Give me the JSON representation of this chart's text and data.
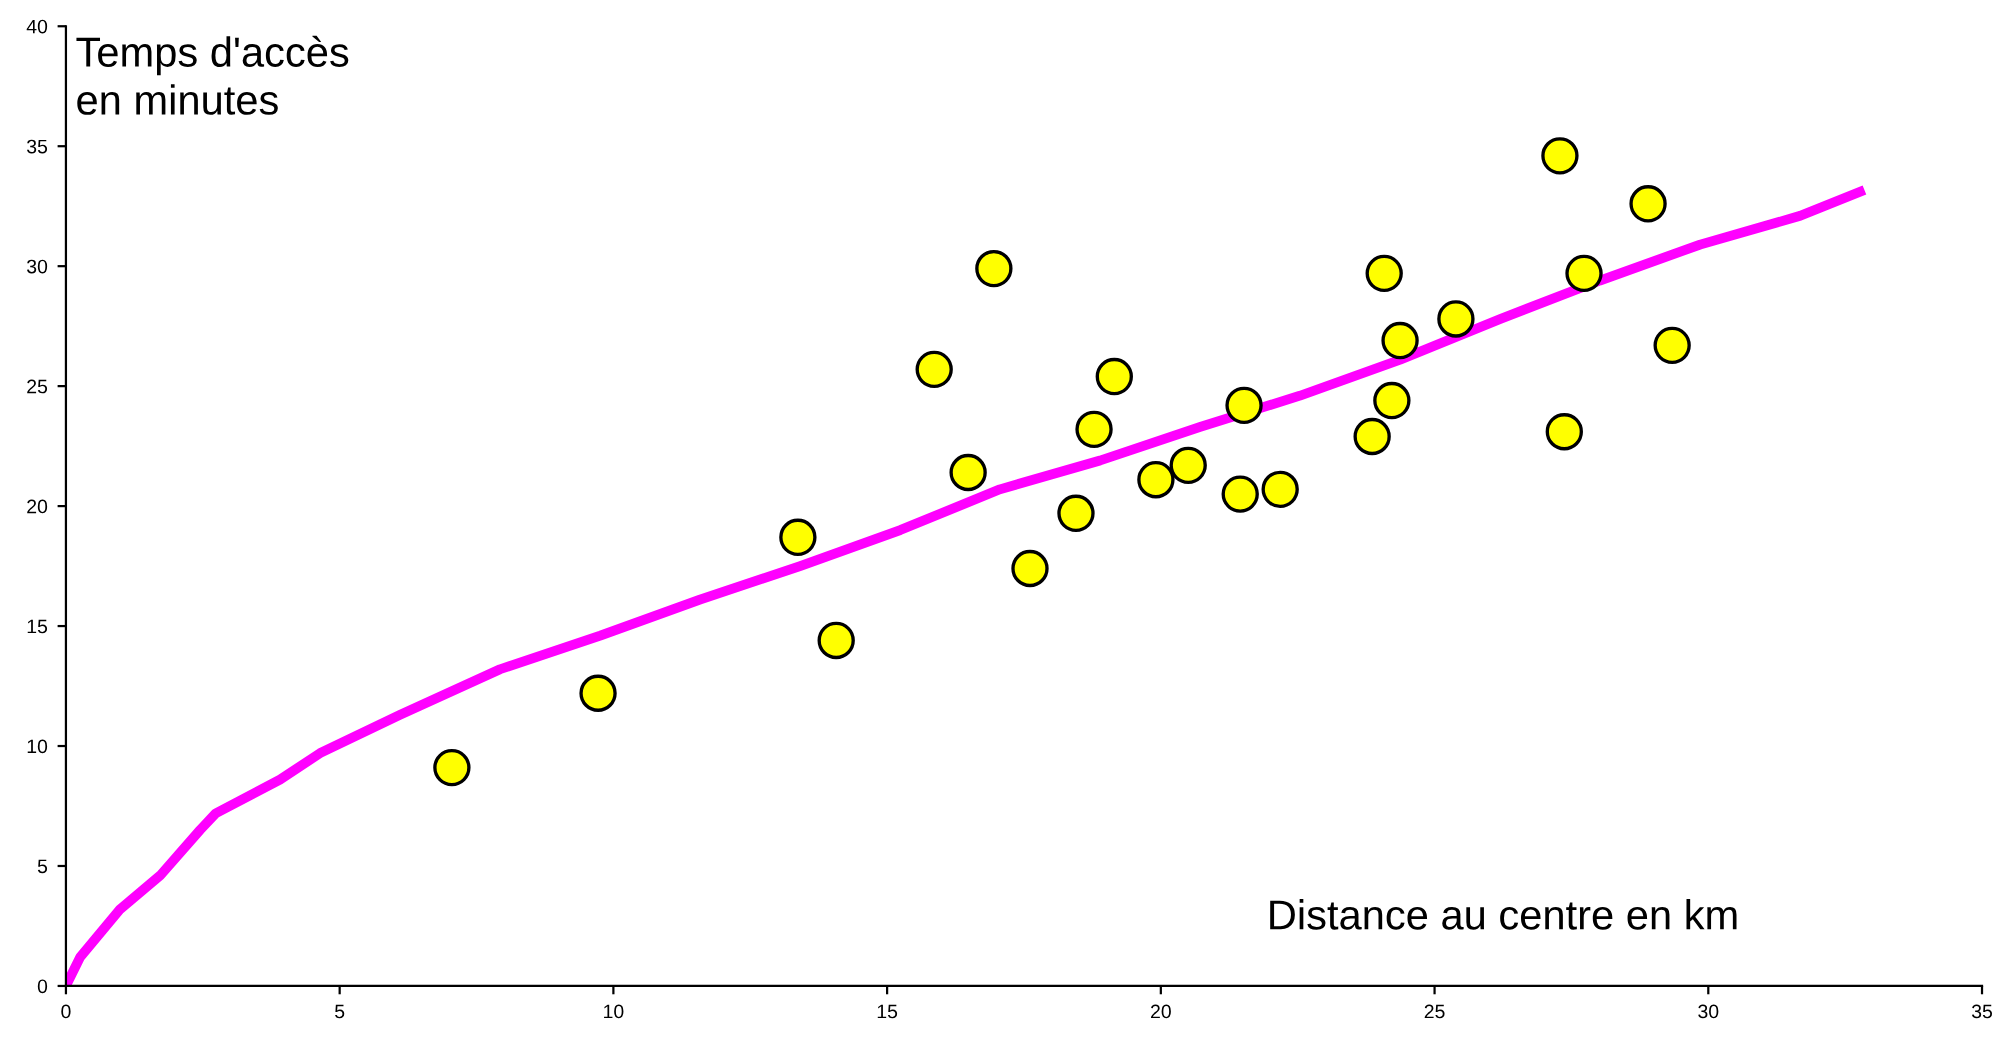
{
  "chart_data": {
    "type": "scatter",
    "xlabel": "Distance au centre en km",
    "ylabel": "Temps d'accès\nen minutes",
    "xlim": [
      0,
      35
    ],
    "ylim": [
      0,
      40
    ],
    "xticks": [
      0,
      5,
      10,
      15,
      20,
      25,
      30,
      35
    ],
    "yticks": [
      0,
      5,
      10,
      15,
      20,
      25,
      30,
      35,
      40
    ],
    "grid": false,
    "legend": false,
    "series": [
      {
        "color": "#ffff00",
        "marker": "circle",
        "x": [
          7.05,
          9.72,
          13.37,
          14.07,
          15.86,
          16.48,
          16.95,
          17.61,
          18.45,
          18.78,
          19.15,
          19.91,
          20.5,
          21.45,
          21.52,
          22.18,
          23.86,
          24.08,
          24.22,
          24.37,
          25.39,
          27.29,
          27.37,
          27.73,
          28.9,
          29.34
        ],
        "values": [
          9.1,
          12.2,
          18.7,
          14.4,
          25.7,
          21.4,
          29.9,
          17.4,
          19.7,
          23.2,
          25.4,
          21.1,
          21.7,
          20.5,
          24.2,
          20.7,
          22.9,
          29.7,
          24.4,
          26.9,
          27.8,
          34.6,
          23.1,
          29.7,
          32.6,
          26.7
        ]
      },
      {
        "type": "line",
        "color": "#ff00ff",
        "marker": "none",
        "line_style": "solid",
        "x": [
          0,
          0.26,
          0.99,
          1.72,
          2.45,
          2.74,
          3.91,
          4.64,
          6.1,
          7.93,
          9.76,
          11.58,
          13.41,
          15.24,
          17.06,
          18.89,
          20.72,
          22.54,
          24.37,
          26.2,
          28.02,
          29.85,
          31.68,
          32.77
        ],
        "values": [
          0,
          1.2,
          3.2,
          4.6,
          6.5,
          7.2,
          8.6,
          9.7,
          11.3,
          13.2,
          14.6,
          16.1,
          17.5,
          19.0,
          20.7,
          21.9,
          23.3,
          24.6,
          26.1,
          27.8,
          29.4,
          30.9,
          32.1,
          33.1
        ]
      }
    ]
  }
}
